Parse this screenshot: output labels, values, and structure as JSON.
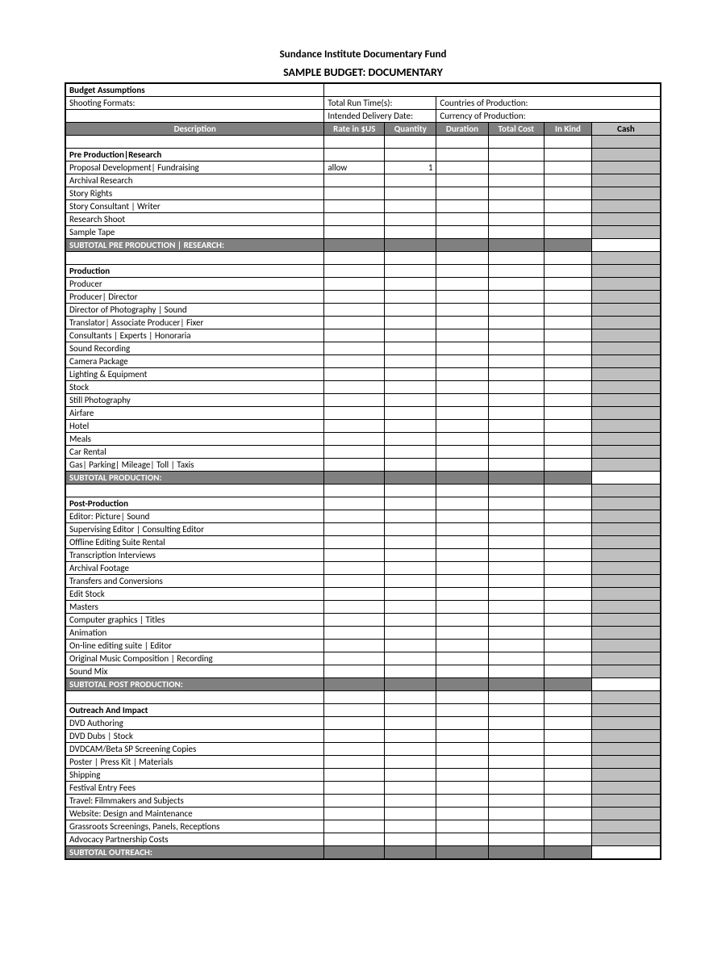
{
  "titles": {
    "org": "Sundance Institute Documentary Fund",
    "doc": "SAMPLE BUDGET: DOCUMENTARY"
  },
  "assumptions": {
    "heading": "Budget Assumptions",
    "shooting_formats": "Shooting Formats:",
    "total_run_time": "Total Run Time(s):",
    "countries": "Countries of Production:",
    "intended_delivery": "Intended Delivery Date:",
    "currency": "Currency of Production:"
  },
  "columns": {
    "description": "Description",
    "rate": "Rate in $US",
    "quantity": "Quantity",
    "duration": "Duration",
    "total": "Total Cost",
    "inkind": "In Kind",
    "cash": "Cash"
  },
  "colors": {
    "header_bg": "#808080",
    "header_fg": "#ffffff",
    "cash_bg": "#bfbfbf",
    "border": "#000000",
    "page_bg": "#ffffff"
  },
  "sections": [
    {
      "title": "Pre Production|Research",
      "rows": [
        {
          "desc": "Proposal Development| Fundraising",
          "rate": "allow",
          "qty": "1"
        },
        {
          "desc": "Archival Research"
        },
        {
          "desc": "Story Rights"
        },
        {
          "desc": "Story Consultant | Writer"
        },
        {
          "desc": "Research Shoot"
        },
        {
          "desc": "Sample Tape"
        }
      ],
      "subtotal": "SUBTOTAL PRE PRODUCTION | RESEARCH:"
    },
    {
      "title": "Production",
      "rows": [
        {
          "desc": "Producer"
        },
        {
          "desc": "Producer| Director"
        },
        {
          "desc": "Director of Photography | Sound"
        },
        {
          "desc": "Translator| Associate Producer| Fixer"
        },
        {
          "desc": "Consultants | Experts | Honoraria"
        },
        {
          "desc": "Sound Recording"
        },
        {
          "desc": "Camera Package"
        },
        {
          "desc": "Lighting & Equipment"
        },
        {
          "desc": "Stock"
        },
        {
          "desc": "Still Photography"
        },
        {
          "desc": "Airfare"
        },
        {
          "desc": "Hotel"
        },
        {
          "desc": "Meals"
        },
        {
          "desc": "Car Rental"
        },
        {
          "desc": "Gas| Parking| Mileage| Toll | Taxis"
        }
      ],
      "subtotal": "SUBTOTAL PRODUCTION:"
    },
    {
      "title": "Post-Production",
      "rows": [
        {
          "desc": "Editor: Picture| Sound"
        },
        {
          "desc": "Supervising Editor | Consulting Editor"
        },
        {
          "desc": "Offline Editing Suite Rental"
        },
        {
          "desc": "Transcription Interviews"
        },
        {
          "desc": "Archival Footage"
        },
        {
          "desc": "Transfers and Conversions"
        },
        {
          "desc": "Edit Stock"
        },
        {
          "desc": "Masters"
        },
        {
          "desc": "Computer graphics | Titles"
        },
        {
          "desc": "Animation"
        },
        {
          "desc": "On-line editing suite | Editor"
        },
        {
          "desc": "Original Music Composition | Recording"
        },
        {
          "desc": "Sound Mix"
        }
      ],
      "subtotal": "SUBTOTAL POST PRODUCTION:"
    },
    {
      "title": "Outreach And Impact",
      "rows": [
        {
          "desc": "DVD Authoring"
        },
        {
          "desc": "DVD Dubs | Stock"
        },
        {
          "desc": "DVDCAM/Beta SP Screening Copies"
        },
        {
          "desc": "Poster | Press Kit | Materials"
        },
        {
          "desc": "Shipping"
        },
        {
          "desc": "Festival Entry Fees"
        },
        {
          "desc": "Travel: Filmmakers and Subjects"
        },
        {
          "desc": "Website: Design and Maintenance"
        },
        {
          "desc": "Grassroots Screenings, Panels, Receptions"
        },
        {
          "desc": "Advocacy Partnership Costs"
        }
      ],
      "subtotal": "SUBTOTAL OUTREACH:"
    }
  ]
}
